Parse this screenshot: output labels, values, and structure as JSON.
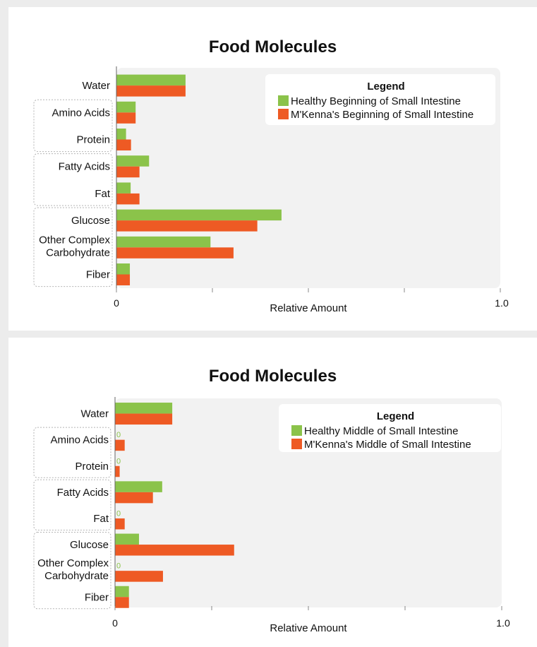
{
  "colors": {
    "healthy": "#8bc34a",
    "mkenna": "#ee5a24",
    "plot_bg": "#f2f2f2"
  },
  "chart_data": [
    {
      "type": "bar",
      "orientation": "horizontal",
      "title": "Food Molecules",
      "xlabel": "Relative Amount",
      "xlim": [
        0,
        1.0
      ],
      "x_tick_labels": [
        "0",
        "1.0"
      ],
      "categories": [
        "Water",
        "Amino Acids",
        "Protein",
        "Fatty Acids",
        "Fat",
        "Glucose",
        "Other Complex Carbohydrate",
        "Fiber"
      ],
      "category_lines": [
        [
          "Water"
        ],
        [
          "Amino Acids"
        ],
        [
          "Protein"
        ],
        [
          "Fatty Acids"
        ],
        [
          "Fat"
        ],
        [
          "Glucose"
        ],
        [
          "Other Complex",
          "Carbohydrate"
        ],
        [
          "Fiber"
        ]
      ],
      "groups": [
        [
          1,
          2
        ],
        [
          3,
          4
        ],
        [
          5,
          6,
          7
        ]
      ],
      "legend": {
        "title": "Legend",
        "position": "top-right"
      },
      "series": [
        {
          "name": "Healthy Beginning of Small Intestine",
          "values": [
            0.18,
            0.05,
            0.025,
            0.085,
            0.037,
            0.43,
            0.245,
            0.035
          ]
        },
        {
          "name": "M'Kenna's Beginning of Small Intestine",
          "values": [
            0.18,
            0.05,
            0.038,
            0.06,
            0.06,
            0.367,
            0.305,
            0.035
          ]
        }
      ],
      "zero_labels": []
    },
    {
      "type": "bar",
      "orientation": "horizontal",
      "title": "Food Molecules",
      "xlabel": "Relative Amount",
      "xlim": [
        0,
        1.0
      ],
      "x_tick_labels": [
        "0",
        "1.0"
      ],
      "categories": [
        "Water",
        "Amino Acids",
        "Protein",
        "Fatty Acids",
        "Fat",
        "Glucose",
        "Other Complex Carbohydrate",
        "Fiber"
      ],
      "category_lines": [
        [
          "Water"
        ],
        [
          "Amino Acids"
        ],
        [
          "Protein"
        ],
        [
          "Fatty Acids"
        ],
        [
          "Fat"
        ],
        [
          "Glucose"
        ],
        [
          "Other Complex",
          "Carbohydrate"
        ],
        [
          "Fiber"
        ]
      ],
      "groups": [
        [
          1,
          2
        ],
        [
          3,
          4
        ],
        [
          5,
          6,
          7
        ]
      ],
      "legend": {
        "title": "Legend",
        "position": "top-right"
      },
      "series": [
        {
          "name": "Healthy Middle of Small Intestine",
          "values": [
            0.148,
            0,
            0,
            0.122,
            0,
            0.062,
            0,
            0.036
          ]
        },
        {
          "name": "M'Kenna's Middle of Small Intestine",
          "values": [
            0.148,
            0.025,
            0.012,
            0.098,
            0.025,
            0.308,
            0.124,
            0.036
          ]
        }
      ],
      "zero_labels": [
        "0",
        "0",
        "0",
        "0"
      ]
    }
  ]
}
